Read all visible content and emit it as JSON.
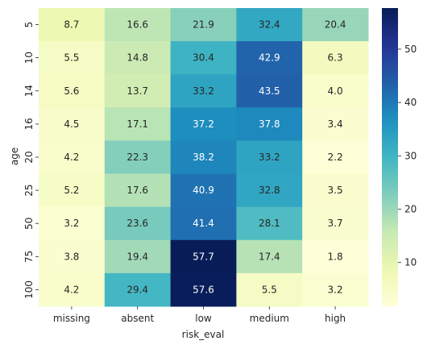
{
  "chart_data": {
    "type": "heatmap",
    "title": "",
    "xlabel": "risk_eval",
    "ylabel": "age",
    "x_categories": [
      "missing",
      "absent",
      "low",
      "medium",
      "high"
    ],
    "y_categories": [
      "5",
      "10",
      "14",
      "16",
      "20",
      "25",
      "50",
      "75",
      "100"
    ],
    "values": [
      [
        8.7,
        16.6,
        21.9,
        32.4,
        20.4
      ],
      [
        5.5,
        14.8,
        30.4,
        42.9,
        6.3
      ],
      [
        5.6,
        13.7,
        33.2,
        43.5,
        4.0
      ],
      [
        4.5,
        17.1,
        37.2,
        37.8,
        3.4
      ],
      [
        4.2,
        22.3,
        38.2,
        33.2,
        2.2
      ],
      [
        5.2,
        17.6,
        40.9,
        32.8,
        3.5
      ],
      [
        3.2,
        23.6,
        41.4,
        28.1,
        3.7
      ],
      [
        3.8,
        19.4,
        57.7,
        17.4,
        1.8
      ],
      [
        4.2,
        29.4,
        57.6,
        5.5,
        3.2
      ]
    ],
    "value_labels": [
      [
        "8.7",
        "16.6",
        "21.9",
        "32.4",
        "20.4"
      ],
      [
        "5.5",
        "14.8",
        "30.4",
        "42.9",
        "6.3"
      ],
      [
        "5.6",
        "13.7",
        "33.2",
        "43.5",
        "4.0"
      ],
      [
        "4.5",
        "17.1",
        "37.2",
        "37.8",
        "3.4"
      ],
      [
        "4.2",
        "22.3",
        "38.2",
        "33.2",
        "2.2"
      ],
      [
        "5.2",
        "17.6",
        "40.9",
        "32.8",
        "3.5"
      ],
      [
        "3.2",
        "23.6",
        "41.4",
        "28.1",
        "3.7"
      ],
      [
        "3.8",
        "19.4",
        "57.7",
        "17.4",
        "1.8"
      ],
      [
        "4.2",
        "29.4",
        "57.6",
        "5.5",
        "3.2"
      ]
    ],
    "colormap": "YlGnBu",
    "vmin": 1.8,
    "vmax": 57.7,
    "colorbar_ticks": [
      10,
      20,
      30,
      40,
      50
    ],
    "colorbar_tick_labels": [
      "10",
      "20",
      "30",
      "40",
      "50"
    ],
    "annotation_colors": {
      "light_bg": "#262626",
      "dark_bg": "#ffffff"
    }
  }
}
